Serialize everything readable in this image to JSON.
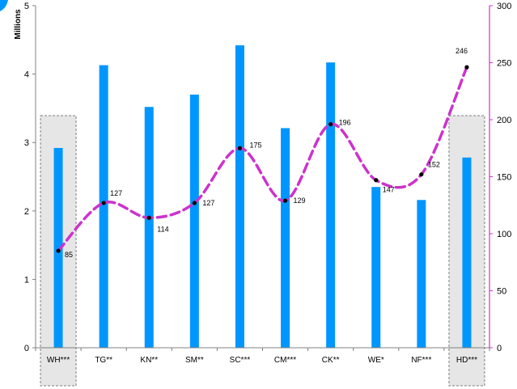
{
  "chart_data": {
    "type": "bar",
    "categories": [
      "WH***",
      "TG**",
      "KN**",
      "SM**",
      "SC***",
      "CM***",
      "CK**",
      "WE*",
      "NF***",
      "HD***"
    ],
    "series": [
      {
        "values": [
          2.92,
          4.13,
          3.52,
          3.7,
          4.42,
          3.21,
          4.17,
          2.35,
          2.16,
          2.78
        ],
        "axis": "left",
        "mark": "bar",
        "color": "#0096FF"
      },
      {
        "values": [
          85,
          127,
          114,
          127,
          175,
          129,
          196,
          147,
          152,
          246
        ],
        "axis": "right",
        "mark": "dashed-smooth-line",
        "color": "#CC33CC",
        "data_labels": [
          "85",
          "127",
          "114",
          "127",
          "175",
          "129",
          "196",
          "147",
          "152",
          "246"
        ]
      }
    ],
    "ylabel": "Millions",
    "ylim": [
      0,
      5
    ],
    "yticks": [
      "0",
      "1",
      "2",
      "3",
      "4",
      "5"
    ],
    "y2lim": [
      0,
      300
    ],
    "y2ticks": [
      "0",
      "50",
      "100",
      "150",
      "200",
      "250",
      "300"
    ],
    "highlighted_categories": [
      "WH***",
      "HD***"
    ],
    "grid": false,
    "legend": "none"
  }
}
